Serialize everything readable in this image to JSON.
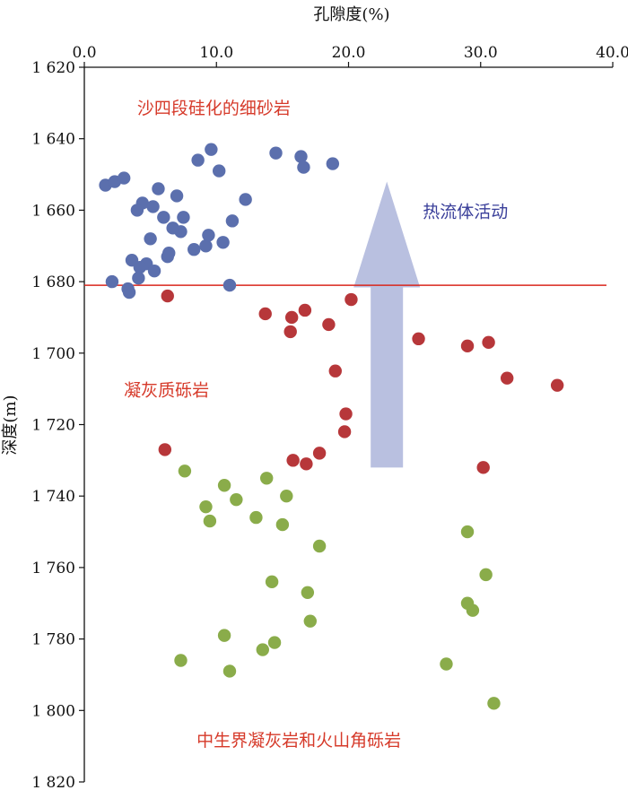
{
  "chart_data": {
    "type": "scatter",
    "xlabel": "孔隙度(%)",
    "ylabel": "深度(m)",
    "xlim": [
      0,
      40
    ],
    "ylim": [
      1620,
      1820
    ],
    "x_axis_position": "top",
    "y_inverted": true,
    "grid": false,
    "x_ticks": [
      0,
      10,
      20,
      30,
      40
    ],
    "x_tick_labels": [
      "0.0",
      "10.0",
      "20.0",
      "30.0",
      "40.0"
    ],
    "y_ticks": [
      1620,
      1640,
      1660,
      1680,
      1700,
      1720,
      1740,
      1760,
      1780,
      1800,
      1820
    ],
    "y_tick_labels": [
      "1 620",
      "1 640",
      "1 660",
      "1 680",
      "1 700",
      "1 720",
      "1 740",
      "1 760",
      "1 780",
      "1 800",
      "1 820"
    ],
    "boundary_depth": 1681,
    "boundary_color": "#d9261c",
    "arrow": {
      "label": "热流体活动",
      "color": "#b9c0e0",
      "label_color": "#3a3f9a",
      "x": 22.9,
      "from_depth": 1732,
      "to_depth": 1652
    },
    "annotations": [
      {
        "text": "沙四段硅化的细砂岩",
        "x": 4.0,
        "y": 1633,
        "color": "#d63a2a"
      },
      {
        "text": "凝灰质砾岩",
        "x": 3.0,
        "y": 1712,
        "color": "#d63a2a"
      },
      {
        "text": "中生界凝灰岩和火山角砾岩",
        "x": 8.5,
        "y": 1810,
        "color": "#d63a2a"
      }
    ],
    "series": [
      {
        "color": "#5b6fad",
        "points": [
          [
            1.6,
            1653
          ],
          [
            2.3,
            1652
          ],
          [
            3.0,
            1651
          ],
          [
            4.4,
            1658
          ],
          [
            4.0,
            1660
          ],
          [
            5.2,
            1659
          ],
          [
            5.6,
            1654
          ],
          [
            6.0,
            1662
          ],
          [
            7.0,
            1656
          ],
          [
            7.3,
            1666
          ],
          [
            7.5,
            1662
          ],
          [
            6.7,
            1665
          ],
          [
            5.0,
            1668
          ],
          [
            6.3,
            1673
          ],
          [
            6.4,
            1672
          ],
          [
            3.6,
            1674
          ],
          [
            4.7,
            1675
          ],
          [
            4.2,
            1676
          ],
          [
            5.3,
            1677
          ],
          [
            4.1,
            1679
          ],
          [
            3.3,
            1682
          ],
          [
            3.4,
            1683
          ],
          [
            2.1,
            1680
          ],
          [
            8.3,
            1671
          ],
          [
            9.2,
            1670
          ],
          [
            9.4,
            1667
          ],
          [
            10.5,
            1669
          ],
          [
            11.2,
            1663
          ],
          [
            12.2,
            1657
          ],
          [
            8.6,
            1646
          ],
          [
            9.6,
            1643
          ],
          [
            10.2,
            1649
          ],
          [
            14.5,
            1644
          ],
          [
            16.4,
            1645
          ],
          [
            16.6,
            1648
          ],
          [
            18.8,
            1647
          ],
          [
            11.0,
            1681
          ]
        ]
      },
      {
        "color": "#b7373a",
        "points": [
          [
            6.3,
            1684
          ],
          [
            13.7,
            1689
          ],
          [
            15.7,
            1690
          ],
          [
            16.7,
            1688
          ],
          [
            15.6,
            1694
          ],
          [
            18.5,
            1692
          ],
          [
            20.2,
            1685
          ],
          [
            25.3,
            1696
          ],
          [
            29.0,
            1698
          ],
          [
            30.6,
            1697
          ],
          [
            19.0,
            1705
          ],
          [
            32.0,
            1707
          ],
          [
            35.8,
            1709
          ],
          [
            19.8,
            1717
          ],
          [
            19.7,
            1722
          ],
          [
            17.8,
            1728
          ],
          [
            16.8,
            1731
          ],
          [
            15.8,
            1730
          ],
          [
            6.1,
            1727
          ],
          [
            30.2,
            1732
          ]
        ]
      },
      {
        "color": "#8aac4a",
        "points": [
          [
            7.6,
            1733
          ],
          [
            10.6,
            1737
          ],
          [
            13.8,
            1735
          ],
          [
            15.3,
            1740
          ],
          [
            11.5,
            1741
          ],
          [
            9.2,
            1743
          ],
          [
            9.5,
            1747
          ],
          [
            13.0,
            1746
          ],
          [
            15.0,
            1748
          ],
          [
            17.8,
            1754
          ],
          [
            29.0,
            1750
          ],
          [
            30.4,
            1762
          ],
          [
            14.2,
            1764
          ],
          [
            16.9,
            1767
          ],
          [
            29.0,
            1770
          ],
          [
            29.4,
            1772
          ],
          [
            17.1,
            1775
          ],
          [
            10.6,
            1779
          ],
          [
            14.4,
            1781
          ],
          [
            13.5,
            1783
          ],
          [
            7.3,
            1786
          ],
          [
            11.0,
            1789
          ],
          [
            27.4,
            1787
          ],
          [
            31.0,
            1798
          ]
        ]
      }
    ]
  }
}
